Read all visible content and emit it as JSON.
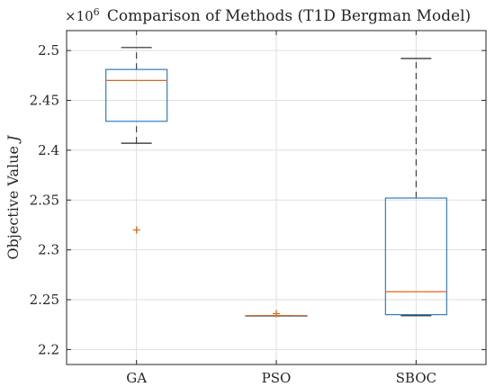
{
  "chart_data": {
    "type": "box",
    "title": "Comparison of Methods (T1D Bergman Model)",
    "ylabel": "Objective Value J",
    "xlabel": "",
    "y_multiplier": "×10^6",
    "ylim": [
      2.185,
      2.52
    ],
    "yticks": [
      2.2,
      2.25,
      2.3,
      2.35,
      2.4,
      2.45,
      2.5
    ],
    "ytick_labels": [
      "2.2",
      "2.25",
      "2.3",
      "2.35",
      "2.4",
      "2.45",
      "2.5"
    ],
    "grid": true,
    "categories": [
      "GA",
      "PSO",
      "SBOC"
    ],
    "boxes": [
      {
        "label": "GA",
        "whisker_low": 2.407,
        "q1": 2.429,
        "median": 2.47,
        "q3": 2.481,
        "whisker_high": 2.503,
        "outliers": [
          2.32
        ]
      },
      {
        "label": "PSO",
        "whisker_low": 2.234,
        "q1": 2.234,
        "median": 2.234,
        "q3": 2.234,
        "whisker_high": 2.234,
        "outliers": [
          2.236
        ]
      },
      {
        "label": "SBOC",
        "whisker_low": 2.234,
        "q1": 2.235,
        "median": 2.258,
        "q3": 2.352,
        "whisker_high": 2.492,
        "outliers": []
      }
    ],
    "colors": {
      "box": "#2f7ec1",
      "median": "#e0671f",
      "whisker": "#262626",
      "outlier": "#e0671f",
      "grid": "#dfdfdf",
      "axis": "#262626"
    }
  }
}
